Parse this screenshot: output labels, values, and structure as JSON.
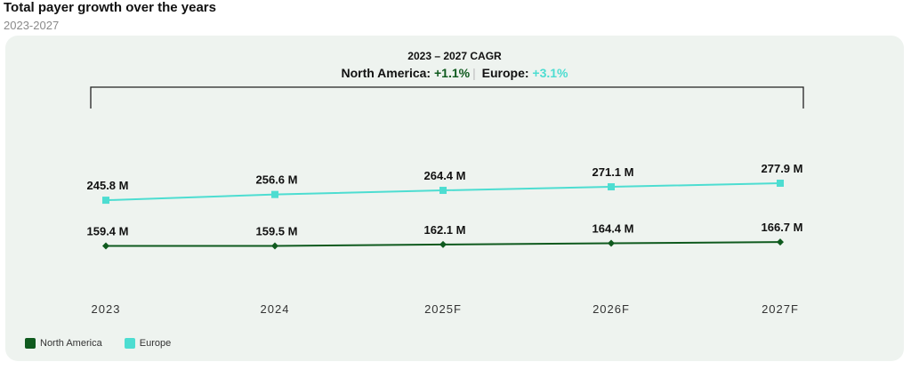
{
  "header": {
    "title": "Total payer growth over the years",
    "subtitle": "2023-2027"
  },
  "cagr": {
    "title": "2023 – 2027 CAGR",
    "na_label": "North America:",
    "na_value": "+1.1%",
    "eu_label": "Europe:",
    "eu_value": "+3.1%"
  },
  "colors": {
    "north_america": "#0f5a1e",
    "europe": "#4dddd1",
    "card_bg": "#eef3ef"
  },
  "chart_data": {
    "type": "line",
    "categories": [
      "2023",
      "2024",
      "2025F",
      "2026F",
      "2027F"
    ],
    "series": [
      {
        "name": "North America",
        "values": [
          159.4,
          159.5,
          162.1,
          164.4,
          166.7
        ],
        "labels": [
          "159.4 M",
          "159.5 M",
          "162.1 M",
          "164.4 M",
          "166.7 M"
        ]
      },
      {
        "name": "Europe",
        "values": [
          245.8,
          256.6,
          264.4,
          271.1,
          277.9
        ],
        "labels": [
          "245.8 M",
          "256.6 M",
          "264.4 M",
          "271.1 M",
          "277.9 M"
        ]
      }
    ],
    "legend": "bottom-left",
    "grid": false
  }
}
